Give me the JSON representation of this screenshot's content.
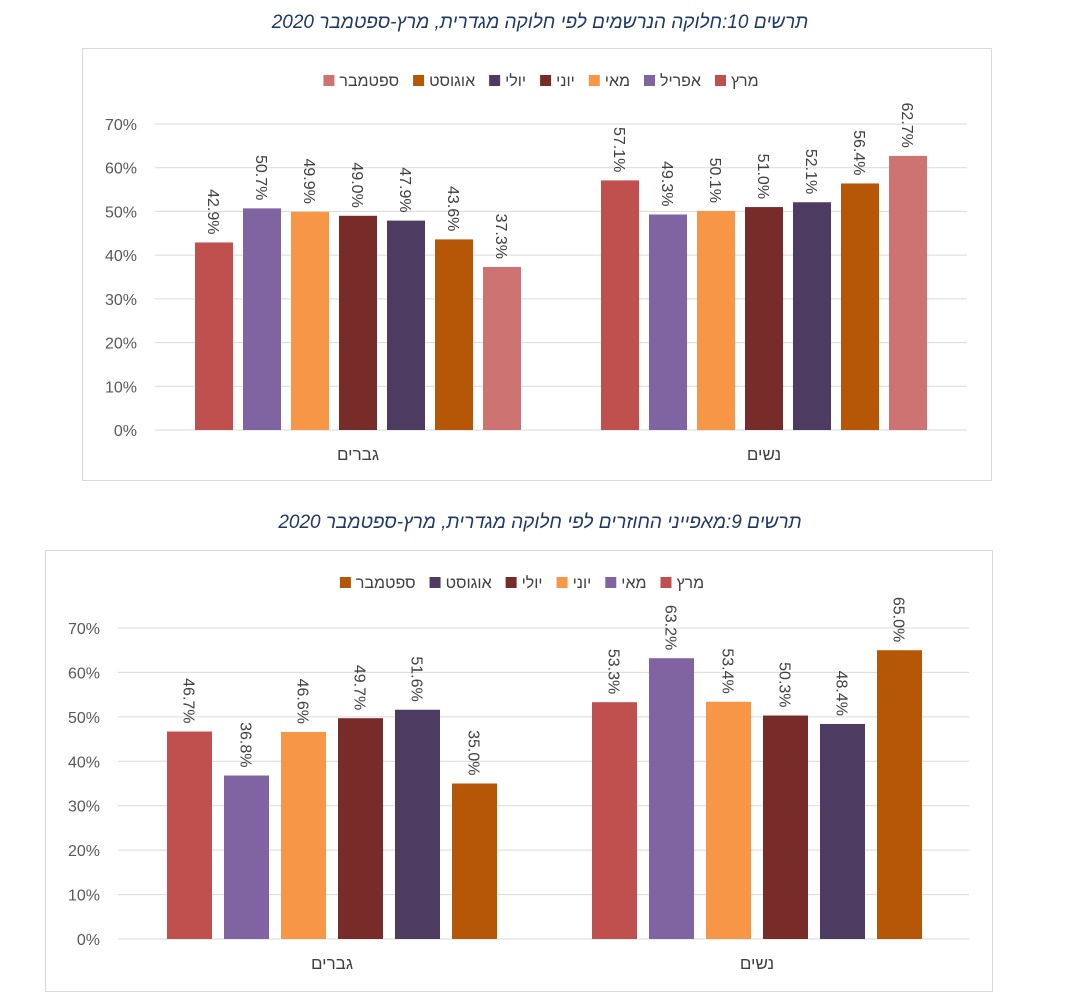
{
  "chart_data": [
    {
      "type": "bar",
      "title": "תרשים 10:חלוקה הנרשמים לפי חלוקה מגדרית, מרץ-ספטמבר 2020",
      "categories": [
        "נשים",
        "גברים"
      ],
      "series": [
        {
          "name": "מרץ",
          "color": "#c0504d",
          "values": [
            57.1,
            42.9
          ]
        },
        {
          "name": "אפריל",
          "color": "#8064a2",
          "values": [
            49.3,
            50.7
          ]
        },
        {
          "name": "מאי",
          "color": "#f79646",
          "values": [
            50.1,
            49.9
          ]
        },
        {
          "name": "יוני",
          "color": "#772c2a",
          "values": [
            51.0,
            49.0
          ]
        },
        {
          "name": "יולי",
          "color": "#4d3b62",
          "values": [
            52.1,
            47.9
          ]
        },
        {
          "name": "אוגוסט",
          "color": "#b65708",
          "values": [
            56.4,
            43.6
          ]
        },
        {
          "name": "ספטמבר",
          "color": "#cd7371",
          "values": [
            62.7,
            37.3
          ]
        }
      ],
      "value_labels": [
        [
          "57.1%",
          "42.9%"
        ],
        [
          "49.3%",
          "50.7%"
        ],
        [
          "50.1%",
          "49.9%"
        ],
        [
          "51.0%",
          "49.0%"
        ],
        [
          "52.1%",
          "47.9%"
        ],
        [
          "56.4%",
          "43.6%"
        ],
        [
          "62.7%",
          "37.3%"
        ]
      ],
      "ylim": [
        0,
        70
      ],
      "yticks": [
        "0%",
        "10%",
        "20%",
        "30%",
        "40%",
        "50%",
        "60%",
        "70%"
      ],
      "xlabel": "",
      "ylabel": "",
      "grid": true,
      "legend": "top"
    },
    {
      "type": "bar",
      "title": "תרשים 9:מאפייני החוזרים לפי חלוקה מגדרית, מרץ-ספטמבר 2020",
      "categories": [
        "נשים",
        "גברים"
      ],
      "series": [
        {
          "name": "מרץ",
          "color": "#c0504d",
          "values": [
            53.3,
            46.7
          ]
        },
        {
          "name": "מאי",
          "color": "#8064a2",
          "values": [
            63.2,
            36.8
          ]
        },
        {
          "name": "יוני",
          "color": "#f79646",
          "values": [
            53.4,
            46.6
          ]
        },
        {
          "name": "יולי",
          "color": "#772c2a",
          "values": [
            50.3,
            49.7
          ]
        },
        {
          "name": "אוגוסט",
          "color": "#4d3b62",
          "values": [
            48.4,
            51.6
          ]
        },
        {
          "name": "ספטמבר",
          "color": "#b65708",
          "values": [
            65.0,
            35.0
          ]
        }
      ],
      "value_labels": [
        [
          "53.3%",
          "46.7%"
        ],
        [
          "63.2%",
          "36.8%"
        ],
        [
          "53.4%",
          "46.6%"
        ],
        [
          "50.3%",
          "49.7%"
        ],
        [
          "48.4%",
          "51.6%"
        ],
        [
          "65.0%",
          "35.0%"
        ]
      ],
      "ylim": [
        0,
        70
      ],
      "yticks": [
        "0%",
        "10%",
        "20%",
        "30%",
        "40%",
        "50%",
        "60%",
        "70%"
      ],
      "xlabel": "",
      "ylabel": "",
      "grid": true,
      "legend": "top"
    }
  ]
}
